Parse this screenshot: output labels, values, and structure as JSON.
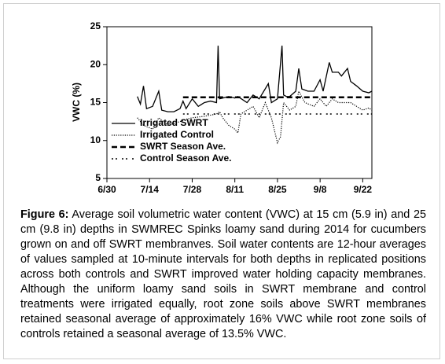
{
  "chart_data": {
    "type": "line",
    "y_label": "VWC (%)",
    "xlim": [
      0,
      87
    ],
    "ylim": [
      5,
      25
    ],
    "xticks": [
      {
        "value": 0,
        "label": "6/30"
      },
      {
        "value": 14,
        "label": "7/14"
      },
      {
        "value": 28,
        "label": "7/28"
      },
      {
        "value": 42,
        "label": "8/11"
      },
      {
        "value": 56,
        "label": "8/25"
      },
      {
        "value": 70,
        "label": "9/8"
      },
      {
        "value": 84,
        "label": "9/22"
      }
    ],
    "yticks": [
      5,
      10,
      15,
      20,
      25
    ],
    "legend": "lower left",
    "series": [
      {
        "name": "Irrigated SWRT",
        "color": "#000000",
        "style": "solid",
        "x": [
          10,
          11,
          12,
          13,
          15,
          17,
          18,
          20,
          22,
          24,
          25,
          26,
          28,
          30,
          32,
          34,
          36,
          36.5,
          37,
          38,
          40,
          42,
          43,
          46,
          48,
          50,
          53,
          54,
          56,
          57.5,
          58,
          59,
          60,
          62,
          63,
          64,
          66,
          68,
          70,
          71,
          73,
          74,
          76,
          77,
          79,
          80,
          82,
          84,
          86,
          87
        ],
        "values": [
          15.8,
          14.8,
          17.2,
          14.2,
          14.5,
          16.5,
          14,
          13.8,
          13.8,
          14.2,
          15.2,
          14.2,
          15.5,
          14.5,
          15,
          15.2,
          15,
          22.5,
          15.5,
          15.6,
          15.8,
          15.6,
          15.8,
          15,
          16,
          15.5,
          17.5,
          15,
          15.5,
          22.5,
          16,
          15.8,
          15.8,
          16.5,
          19.5,
          16.8,
          16.5,
          16.5,
          18,
          16.5,
          20.3,
          19,
          19,
          18.5,
          19.5,
          17.8,
          17.2,
          16.5,
          16.3,
          16.5
        ]
      },
      {
        "name": "Irrigated Control",
        "color": "#000000",
        "style": "dotted",
        "x": [
          10,
          12,
          15,
          17,
          20,
          24,
          26,
          28,
          32,
          36,
          37,
          38,
          40,
          42,
          43,
          44,
          46,
          48,
          50,
          52,
          54,
          56,
          57,
          58,
          60,
          62,
          63,
          65,
          68,
          70,
          72,
          74,
          76,
          80,
          82,
          84,
          86,
          87
        ],
        "values": [
          13,
          12,
          11.5,
          13,
          12,
          12.5,
          12.8,
          13,
          13.2,
          13.5,
          13.8,
          13,
          12,
          11.5,
          11,
          13.5,
          14,
          14.5,
          13,
          15,
          13,
          9.7,
          10.5,
          15,
          14,
          14.5,
          16.5,
          15,
          14.5,
          15.5,
          14.5,
          15.5,
          15,
          15,
          14.5,
          14,
          14.3,
          14
        ]
      },
      {
        "name": "SWRT Season Ave.",
        "color": "#000000",
        "style": "dashed",
        "x": [
          25,
          87
        ],
        "values": [
          15.7,
          15.7
        ]
      },
      {
        "name": "Control Season Ave.",
        "color": "#000000",
        "style": "dashdot",
        "x": [
          25,
          87
        ],
        "values": [
          13.5,
          13.5
        ]
      }
    ]
  },
  "caption": {
    "label": "Figure 6:",
    "text": "Average soil volumetric water content (VWC) at 15 cm (5.9 in) and 25 cm (9.8 in) depths in SWMREC Spinks loamy sand during 2014 for cucumbers grown on and off SWRT membranves. Soil water contents are 12-hour averages of values sampled at 10-minute intervals for both depths in replicated positions across both controls and SWRT improved water holding capacity membranes. Although the uniform loamy sand soils in SWRT membrane and control treatments were irrigated equally, root zone soils above SWRT membranes retained seasonal average of approximately 16% VWC while root zone soils of controls retained a seasonal average of 13.5% VWC."
  }
}
